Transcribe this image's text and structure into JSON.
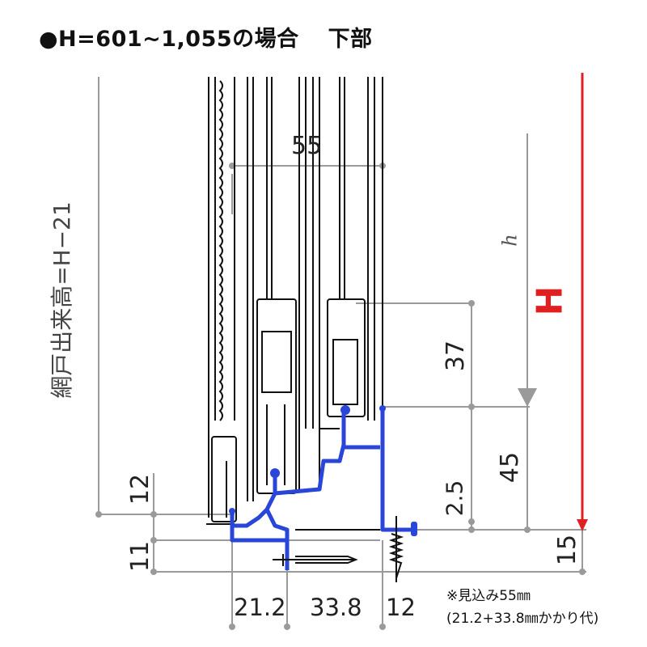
{
  "title": {
    "main": "●H=601~1,055の場合",
    "sub": "下部"
  },
  "labels": {
    "screen_height": "網戸出来高=H−21",
    "H": "H",
    "h": "h"
  },
  "dimensions": {
    "depth": "55",
    "d37": "37",
    "d45": "45",
    "d2_5": "2.5",
    "d15": "15",
    "d12_left": "12",
    "d11": "11",
    "d21_2": "21.2",
    "d33_8": "33.8",
    "d12_bottom": "12"
  },
  "notes": {
    "line1": "※見込み55㎜",
    "line2": "(21.2+33.8㎜かかり代)"
  },
  "colors": {
    "profile": "#2a46d8",
    "height_arrow": "#e02020",
    "dimension": "#9a9a9a"
  }
}
